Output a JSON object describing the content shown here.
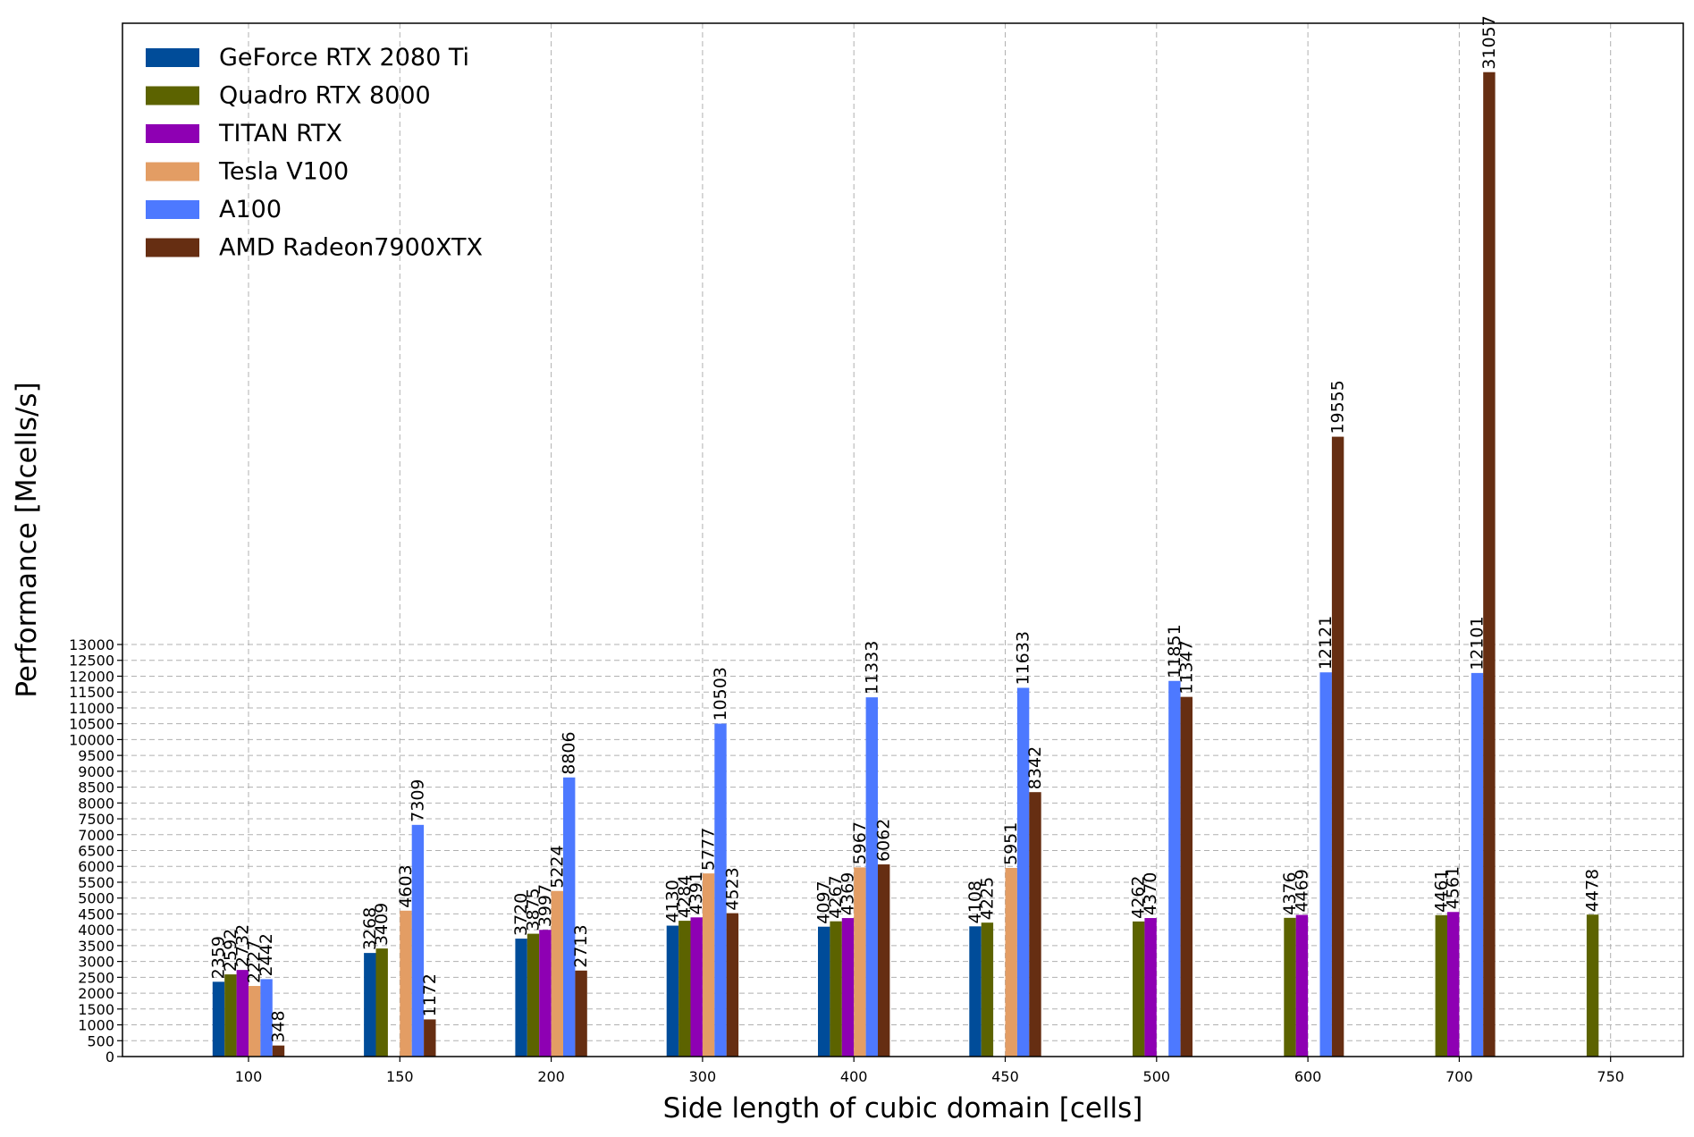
{
  "chart_data": {
    "type": "bar",
    "title": "",
    "xlabel": "Side length of cubic domain [cells]",
    "ylabel": "Performance [Mcells/s]",
    "categories": [
      "100",
      "150",
      "200",
      "300",
      "400",
      "450",
      "500",
      "600",
      "700",
      "750"
    ],
    "y_ticks": [
      0,
      500,
      1000,
      1500,
      2000,
      2500,
      3000,
      3500,
      4000,
      4500,
      5000,
      5500,
      6000,
      6500,
      7000,
      7500,
      8000,
      8500,
      9000,
      9500,
      10000,
      10500,
      11000,
      11500,
      12000,
      12500,
      13000
    ],
    "ylim": [
      0,
      32600
    ],
    "grid": true,
    "legend_position": "upper-left",
    "series": [
      {
        "name": "GeForce RTX 2080 Ti",
        "color": "#004c99",
        "values": [
          2359,
          3268,
          3720,
          4130,
          4097,
          4108,
          null,
          null,
          null,
          null
        ]
      },
      {
        "name": "Quadro RTX 8000",
        "color": "#5c6300",
        "values": [
          2592,
          3409,
          3875,
          4284,
          4267,
          4225,
          4262,
          4376,
          4461,
          4478
        ]
      },
      {
        "name": "TITAN RTX",
        "color": "#8e00b3",
        "values": [
          2732,
          null,
          3997,
          4391,
          4369,
          null,
          4370,
          4469,
          4561,
          null
        ]
      },
      {
        "name": "Tesla V100",
        "color": "#e39d64",
        "values": [
          2227,
          4603,
          5224,
          5777,
          5967,
          5951,
          null,
          null,
          null,
          null
        ]
      },
      {
        "name": "A100",
        "color": "#4d79ff",
        "values": [
          2442,
          7309,
          8806,
          10503,
          11333,
          11633,
          11851,
          12121,
          12101,
          null
        ]
      },
      {
        "name": "AMD Radeon7900XTX",
        "color": "#662e12",
        "values": [
          348,
          1172,
          2713,
          4523,
          6062,
          8342,
          11347,
          19555,
          31057,
          null
        ]
      }
    ]
  }
}
